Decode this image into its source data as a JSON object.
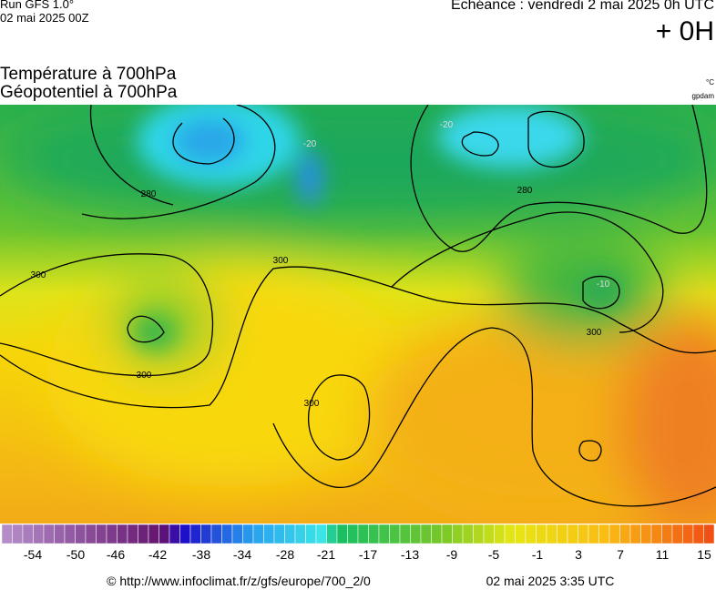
{
  "header": {
    "run": "Run GFS 1.0°",
    "run_date": "02 mai 2025 00Z",
    "forecast": "Echéance : vendredi 2 mai 2025 0h UTC",
    "lead": "+ 0H",
    "title_1": "Température à 700hPa",
    "title_2": "Géopotentiel à 700hPa",
    "unit_temp": "°C",
    "unit_geo": "gpdam"
  },
  "map": {
    "contour_labels": [
      "300",
      "300",
      "300",
      "300",
      "300",
      "280",
      "280",
      "-20",
      "-20",
      "-10"
    ]
  },
  "colorbar": {
    "labels": [
      "-54",
      "-50",
      "-46",
      "-42",
      "-38",
      "-34",
      "-28",
      "-21",
      "-17",
      "-13",
      "-9",
      "-5",
      "-1",
      "3",
      "7",
      "11",
      "15"
    ]
  },
  "footer": {
    "source": "© http://www.infoclimat.fr/z/gfs/europe/700_2/0",
    "generated": "02 mai 2025  3:35 UTC"
  }
}
